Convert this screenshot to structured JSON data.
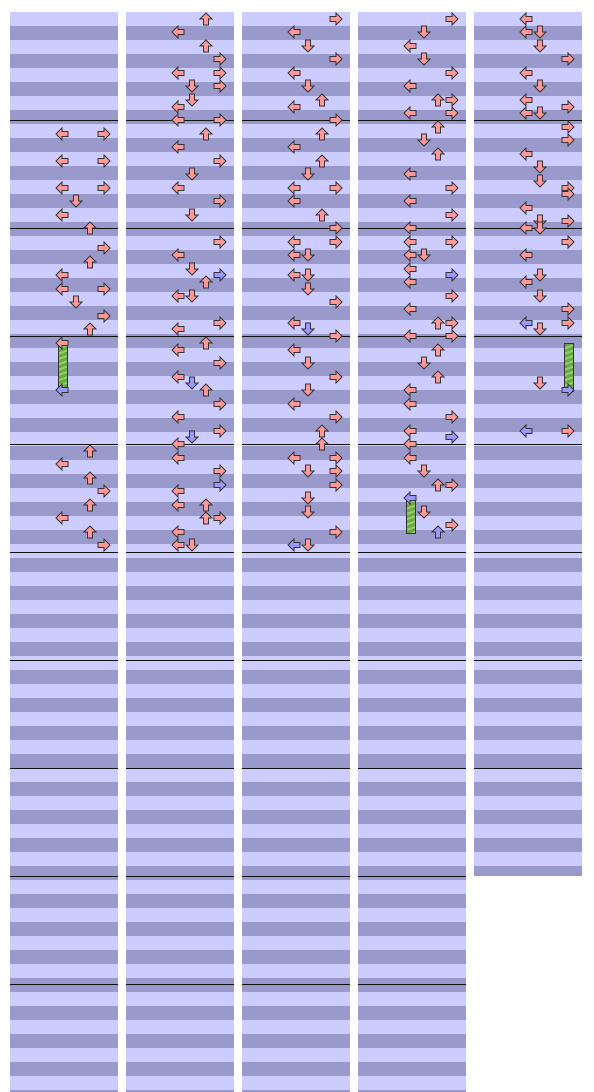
{
  "colors": {
    "light_stripe": "#ccccff",
    "dark_stripe": "#9999cc",
    "measure_line": "#111111",
    "note_fill": "#ff9999",
    "note_alt_fill": "#9999ff",
    "note_outline": "#333333",
    "hold_fill": "#66aa44",
    "hold_stripe": "#99cc66"
  },
  "lanes": [
    "left",
    "down",
    "up",
    "right"
  ],
  "icon_names": {
    "left": "left-arrow-icon",
    "down": "down-arrow-icon",
    "up": "up-arrow-icon",
    "right": "right-arrow-icon"
  },
  "columns": [
    {
      "measures": 10,
      "notes": [
        {
          "beat": 4.5,
          "dirs": [
            "left",
            "right"
          ]
        },
        {
          "beat": 5.5,
          "dirs": [
            "left",
            "right"
          ]
        },
        {
          "beat": 6.5,
          "dirs": [
            "left",
            "right"
          ]
        },
        {
          "beat": 7.0,
          "dirs": [
            "down"
          ]
        },
        {
          "beat": 7.5,
          "dirs": [
            "left"
          ]
        },
        {
          "beat": 8.0,
          "dirs": [
            "up"
          ]
        },
        {
          "beat": 8.75,
          "dirs": [
            "right"
          ]
        },
        {
          "beat": 9.25,
          "dirs": [
            "up"
          ]
        },
        {
          "beat": 9.75,
          "dirs": [
            "left"
          ]
        },
        {
          "beat": 10.25,
          "dirs": [
            "left",
            "right"
          ]
        },
        {
          "beat": 10.75,
          "dirs": [
            "down"
          ]
        },
        {
          "beat": 11.25,
          "dirs": [
            "right"
          ]
        },
        {
          "beat": 11.75,
          "dirs": [
            "up"
          ]
        },
        {
          "beat": 12.25,
          "dirs": [
            "left"
          ]
        },
        {
          "beat": 14.0,
          "dirs": [
            "left"
          ],
          "alt": true
        },
        {
          "beat": 16.25,
          "dirs": [
            "up"
          ]
        },
        {
          "beat": 16.75,
          "dirs": [
            "left"
          ]
        },
        {
          "beat": 17.25,
          "dirs": [
            "up"
          ]
        },
        {
          "beat": 17.75,
          "dirs": [
            "right"
          ]
        },
        {
          "beat": 18.25,
          "dirs": [
            "up"
          ]
        },
        {
          "beat": 18.75,
          "dirs": [
            "left"
          ]
        },
        {
          "beat": 19.25,
          "dirs": [
            "up"
          ]
        },
        {
          "beat": 19.75,
          "dirs": [
            "right"
          ]
        }
      ],
      "holds": [
        {
          "lane": "left",
          "from": 12.25,
          "to": 14.0
        }
      ]
    },
    {
      "measures": 10,
      "notes": [
        {
          "beat": 0.25,
          "dirs": [
            "up"
          ]
        },
        {
          "beat": 0.75,
          "dirs": [
            "left"
          ]
        },
        {
          "beat": 1.25,
          "dirs": [
            "up"
          ]
        },
        {
          "beat": 1.75,
          "dirs": [
            "right"
          ]
        },
        {
          "beat": 2.25,
          "dirs": [
            "left",
            "right"
          ]
        },
        {
          "beat": 2.75,
          "dirs": [
            "down",
            "right"
          ]
        },
        {
          "beat": 3.25,
          "dirs": [
            "down"
          ]
        },
        {
          "beat": 3.5,
          "dirs": [
            "left"
          ]
        },
        {
          "beat": 4.0,
          "dirs": [
            "right",
            "left"
          ]
        },
        {
          "beat": 4.5,
          "dirs": [
            "up"
          ]
        },
        {
          "beat": 5.0,
          "dirs": [
            "left"
          ]
        },
        {
          "beat": 5.5,
          "dirs": [
            "right"
          ]
        },
        {
          "beat": 6.0,
          "dirs": [
            "down"
          ]
        },
        {
          "beat": 6.5,
          "dirs": [
            "left"
          ]
        },
        {
          "beat": 7.0,
          "dirs": [
            "right"
          ]
        },
        {
          "beat": 7.5,
          "dirs": [
            "down"
          ]
        },
        {
          "beat": 8.5,
          "dirs": [
            "right"
          ]
        },
        {
          "beat": 9.0,
          "dirs": [
            "left"
          ]
        },
        {
          "beat": 9.5,
          "dirs": [
            "down"
          ]
        },
        {
          "beat": 9.75,
          "dirs": [
            "right"
          ],
          "alt": true
        },
        {
          "beat": 10.0,
          "dirs": [
            "up"
          ]
        },
        {
          "beat": 10.5,
          "dirs": [
            "left",
            "down"
          ]
        },
        {
          "beat": 11.5,
          "dirs": [
            "right"
          ]
        },
        {
          "beat": 11.75,
          "dirs": [
            "left"
          ]
        },
        {
          "beat": 12.25,
          "dirs": [
            "up"
          ]
        },
        {
          "beat": 12.5,
          "dirs": [
            "left"
          ]
        },
        {
          "beat": 13.0,
          "dirs": [
            "right"
          ]
        },
        {
          "beat": 13.5,
          "dirs": [
            "left"
          ]
        },
        {
          "beat": 13.75,
          "dirs": [
            "down"
          ],
          "alt": true
        },
        {
          "beat": 14.0,
          "dirs": [
            "up"
          ]
        },
        {
          "beat": 14.5,
          "dirs": [
            "right"
          ]
        },
        {
          "beat": 15.0,
          "dirs": [
            "left"
          ]
        },
        {
          "beat": 15.5,
          "dirs": [
            "right"
          ]
        },
        {
          "beat": 15.75,
          "dirs": [
            "down"
          ],
          "alt": true
        },
        {
          "beat": 16.0,
          "dirs": [
            "left"
          ]
        },
        {
          "beat": 16.5,
          "dirs": [
            "left"
          ]
        },
        {
          "beat": 17.0,
          "dirs": [
            "right"
          ]
        },
        {
          "beat": 17.5,
          "dirs": [
            "right"
          ],
          "alt": true
        },
        {
          "beat": 17.75,
          "dirs": [
            "left"
          ]
        },
        {
          "beat": 18.25,
          "dirs": [
            "up",
            "left"
          ]
        },
        {
          "beat": 18.75,
          "dirs": [
            "up",
            "right"
          ]
        },
        {
          "beat": 19.25,
          "dirs": [
            "left"
          ]
        },
        {
          "beat": 19.75,
          "dirs": [
            "down",
            "left"
          ]
        }
      ],
      "holds": []
    },
    {
      "measures": 10,
      "notes": [
        {
          "beat": 0.25,
          "dirs": [
            "right"
          ]
        },
        {
          "beat": 0.75,
          "dirs": [
            "left"
          ]
        },
        {
          "beat": 1.25,
          "dirs": [
            "down"
          ]
        },
        {
          "beat": 1.75,
          "dirs": [
            "right"
          ]
        },
        {
          "beat": 2.25,
          "dirs": [
            "left"
          ]
        },
        {
          "beat": 2.75,
          "dirs": [
            "down"
          ]
        },
        {
          "beat": 3.25,
          "dirs": [
            "up"
          ]
        },
        {
          "beat": 3.5,
          "dirs": [
            "left"
          ]
        },
        {
          "beat": 4.0,
          "dirs": [
            "right"
          ]
        },
        {
          "beat": 4.5,
          "dirs": [
            "up"
          ]
        },
        {
          "beat": 5.0,
          "dirs": [
            "left"
          ]
        },
        {
          "beat": 5.5,
          "dirs": [
            "up"
          ]
        },
        {
          "beat": 6.0,
          "dirs": [
            "down"
          ]
        },
        {
          "beat": 6.5,
          "dirs": [
            "left",
            "right"
          ]
        },
        {
          "beat": 7.0,
          "dirs": [
            "left"
          ]
        },
        {
          "beat": 7.5,
          "dirs": [
            "up"
          ]
        },
        {
          "beat": 8.0,
          "dirs": [
            "right"
          ]
        },
        {
          "beat": 8.5,
          "dirs": [
            "left",
            "right"
          ]
        },
        {
          "beat": 9.0,
          "dirs": [
            "left",
            "down"
          ]
        },
        {
          "beat": 9.75,
          "dirs": [
            "left",
            "down"
          ]
        },
        {
          "beat": 10.25,
          "dirs": [
            "down"
          ]
        },
        {
          "beat": 10.75,
          "dirs": [
            "right"
          ]
        },
        {
          "beat": 11.5,
          "dirs": [
            "left"
          ]
        },
        {
          "beat": 11.75,
          "dirs": [
            "down"
          ],
          "alt": true
        },
        {
          "beat": 12.0,
          "dirs": [
            "right"
          ]
        },
        {
          "beat": 12.5,
          "dirs": [
            "left"
          ]
        },
        {
          "beat": 13.0,
          "dirs": [
            "down"
          ]
        },
        {
          "beat": 13.5,
          "dirs": [
            "right"
          ]
        },
        {
          "beat": 14.0,
          "dirs": [
            "down"
          ]
        },
        {
          "beat": 14.5,
          "dirs": [
            "left"
          ]
        },
        {
          "beat": 15.0,
          "dirs": [
            "right"
          ]
        },
        {
          "beat": 15.5,
          "dirs": [
            "up"
          ]
        },
        {
          "beat": 16.0,
          "dirs": [
            "up"
          ]
        },
        {
          "beat": 16.5,
          "dirs": [
            "left",
            "right"
          ]
        },
        {
          "beat": 17.0,
          "dirs": [
            "right",
            "down"
          ]
        },
        {
          "beat": 17.5,
          "dirs": [
            "right"
          ]
        },
        {
          "beat": 18.0,
          "dirs": [
            "down"
          ]
        },
        {
          "beat": 18.5,
          "dirs": [
            "down"
          ]
        },
        {
          "beat": 19.25,
          "dirs": [
            "right"
          ]
        },
        {
          "beat": 19.75,
          "dirs": [
            "down",
            "left"
          ],
          "alt_index": 1
        }
      ],
      "holds": []
    },
    {
      "measures": 10,
      "notes": [
        {
          "beat": 0.25,
          "dirs": [
            "right"
          ]
        },
        {
          "beat": 0.75,
          "dirs": [
            "down"
          ]
        },
        {
          "beat": 1.25,
          "dirs": [
            "left"
          ]
        },
        {
          "beat": 1.75,
          "dirs": [
            "down"
          ]
        },
        {
          "beat": 2.25,
          "dirs": [
            "right"
          ]
        },
        {
          "beat": 2.75,
          "dirs": [
            "left"
          ]
        },
        {
          "beat": 3.25,
          "dirs": [
            "right",
            "up"
          ]
        },
        {
          "beat": 3.75,
          "dirs": [
            "right",
            "left"
          ]
        },
        {
          "beat": 4.25,
          "dirs": [
            "up"
          ]
        },
        {
          "beat": 4.75,
          "dirs": [
            "down"
          ]
        },
        {
          "beat": 5.25,
          "dirs": [
            "up"
          ]
        },
        {
          "beat": 6.0,
          "dirs": [
            "left"
          ]
        },
        {
          "beat": 6.5,
          "dirs": [
            "right"
          ]
        },
        {
          "beat": 7.0,
          "dirs": [
            "left"
          ]
        },
        {
          "beat": 7.5,
          "dirs": [
            "right"
          ]
        },
        {
          "beat": 8.0,
          "dirs": [
            "left"
          ]
        },
        {
          "beat": 8.5,
          "dirs": [
            "right",
            "left"
          ]
        },
        {
          "beat": 9.0,
          "dirs": [
            "left",
            "down"
          ]
        },
        {
          "beat": 9.5,
          "dirs": [
            "left"
          ]
        },
        {
          "beat": 9.75,
          "dirs": [
            "right"
          ],
          "alt": true
        },
        {
          "beat": 10.0,
          "dirs": [
            "left"
          ]
        },
        {
          "beat": 10.5,
          "dirs": [
            "right"
          ]
        },
        {
          "beat": 11.0,
          "dirs": [
            "left"
          ]
        },
        {
          "beat": 11.5,
          "dirs": [
            "up",
            "right"
          ]
        },
        {
          "beat": 12.0,
          "dirs": [
            "right",
            "left"
          ]
        },
        {
          "beat": 12.5,
          "dirs": [
            "up"
          ]
        },
        {
          "beat": 13.0,
          "dirs": [
            "down"
          ]
        },
        {
          "beat": 13.5,
          "dirs": [
            "up"
          ]
        },
        {
          "beat": 14.0,
          "dirs": [
            "left"
          ]
        },
        {
          "beat": 14.5,
          "dirs": [
            "left"
          ]
        },
        {
          "beat": 15.0,
          "dirs": [
            "right"
          ]
        },
        {
          "beat": 15.5,
          "dirs": [
            "left"
          ]
        },
        {
          "beat": 15.75,
          "dirs": [
            "right"
          ],
          "alt": true
        },
        {
          "beat": 16.0,
          "dirs": [
            "left"
          ]
        },
        {
          "beat": 16.5,
          "dirs": [
            "left"
          ]
        },
        {
          "beat": 17.0,
          "dirs": [
            "down"
          ]
        },
        {
          "beat": 17.5,
          "dirs": [
            "up",
            "right"
          ]
        },
        {
          "beat": 18.0,
          "dirs": [
            "left"
          ],
          "alt": true
        },
        {
          "beat": 18.5,
          "dirs": [
            "down"
          ]
        },
        {
          "beat": 19.0,
          "dirs": [
            "right"
          ]
        },
        {
          "beat": 19.25,
          "dirs": [
            "up"
          ],
          "alt": true
        }
      ],
      "holds": [
        {
          "lane": "left",
          "from": 18.0,
          "to": 19.25
        }
      ]
    },
    {
      "measures": 8,
      "notes": [
        {
          "beat": 0.25,
          "dirs": [
            "left"
          ]
        },
        {
          "beat": 0.75,
          "dirs": [
            "left",
            "down"
          ]
        },
        {
          "beat": 1.25,
          "dirs": [
            "down"
          ]
        },
        {
          "beat": 1.75,
          "dirs": [
            "right"
          ]
        },
        {
          "beat": 2.25,
          "dirs": [
            "left"
          ]
        },
        {
          "beat": 2.75,
          "dirs": [
            "down"
          ]
        },
        {
          "beat": 3.25,
          "dirs": [
            "left"
          ]
        },
        {
          "beat": 3.5,
          "dirs": [
            "right"
          ]
        },
        {
          "beat": 3.75,
          "dirs": [
            "left",
            "down"
          ]
        },
        {
          "beat": 4.25,
          "dirs": [
            "right"
          ]
        },
        {
          "beat": 4.75,
          "dirs": [
            "right"
          ]
        },
        {
          "beat": 5.25,
          "dirs": [
            "left"
          ]
        },
        {
          "beat": 5.75,
          "dirs": [
            "down"
          ]
        },
        {
          "beat": 6.25,
          "dirs": [
            "down"
          ]
        },
        {
          "beat": 6.5,
          "dirs": [
            "right"
          ]
        },
        {
          "beat": 6.75,
          "dirs": [
            "right"
          ]
        },
        {
          "beat": 7.25,
          "dirs": [
            "left"
          ]
        },
        {
          "beat": 7.75,
          "dirs": [
            "right",
            "down"
          ]
        },
        {
          "beat": 8.0,
          "dirs": [
            "down",
            "left"
          ]
        },
        {
          "beat": 8.5,
          "dirs": [
            "right"
          ]
        },
        {
          "beat": 9.0,
          "dirs": [
            "left"
          ]
        },
        {
          "beat": 9.75,
          "dirs": [
            "down"
          ]
        },
        {
          "beat": 10.0,
          "dirs": [
            "left"
          ]
        },
        {
          "beat": 10.5,
          "dirs": [
            "down"
          ]
        },
        {
          "beat": 11.0,
          "dirs": [
            "right"
          ]
        },
        {
          "beat": 11.5,
          "dirs": [
            "right",
            "left"
          ],
          "alt_index": 1
        },
        {
          "beat": 11.75,
          "dirs": [
            "down"
          ]
        },
        {
          "beat": 13.75,
          "dirs": [
            "down"
          ]
        },
        {
          "beat": 14.0,
          "dirs": [
            "right"
          ],
          "alt": true
        },
        {
          "beat": 15.5,
          "dirs": [
            "right",
            "left"
          ],
          "alt_index": 1
        }
      ],
      "holds": [
        {
          "lane": "right",
          "from": 12.25,
          "to": 14.0
        }
      ]
    }
  ]
}
